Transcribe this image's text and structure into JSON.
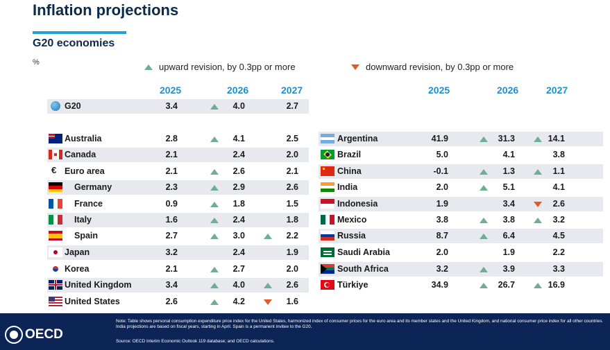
{
  "title": "Inflation projections",
  "subtitle": "G20 economies",
  "unit": "%",
  "legend": {
    "up": "upward revision, by 0.3pp or more",
    "down": "downward revision, by 0.3pp or more"
  },
  "colors": {
    "up": "#6fae94",
    "down": "#e05a2b",
    "year": "#1f8fd0",
    "footer": "#0c2456"
  },
  "years": [
    "2025",
    "2026",
    "2027"
  ],
  "left_rows": [
    {
      "name": "G20",
      "v2025": "3.4",
      "v2026": "4.0",
      "v2027": "2.7",
      "r2026": "up",
      "r2027": ""
    },
    {
      "name": "Australia",
      "v2025": "2.8",
      "v2026": "4.1",
      "v2027": "2.5",
      "r2026": "up",
      "r2027": ""
    },
    {
      "name": "Canada",
      "v2025": "2.1",
      "v2026": "2.4",
      "v2027": "2.0",
      "r2026": "",
      "r2027": ""
    },
    {
      "name": "Euro area",
      "v2025": "2.1",
      "v2026": "2.6",
      "v2027": "2.1",
      "r2026": "up",
      "r2027": ""
    },
    {
      "name": "Germany",
      "v2025": "2.3",
      "v2026": "2.9",
      "v2027": "2.6",
      "r2026": "up",
      "r2027": ""
    },
    {
      "name": "France",
      "v2025": "0.9",
      "v2026": "1.8",
      "v2027": "1.5",
      "r2026": "up",
      "r2027": ""
    },
    {
      "name": "Italy",
      "v2025": "1.6",
      "v2026": "2.4",
      "v2027": "1.8",
      "r2026": "up",
      "r2027": ""
    },
    {
      "name": "Spain",
      "v2025": "2.7",
      "v2026": "3.0",
      "v2027": "2.2",
      "r2026": "up",
      "r2027": "up"
    },
    {
      "name": "Japan",
      "v2025": "3.2",
      "v2026": "2.4",
      "v2027": "1.9",
      "r2026": "",
      "r2027": ""
    },
    {
      "name": "Korea",
      "v2025": "2.1",
      "v2026": "2.7",
      "v2027": "2.0",
      "r2026": "up",
      "r2027": ""
    },
    {
      "name": "United Kingdom",
      "v2025": "3.4",
      "v2026": "4.0",
      "v2027": "2.6",
      "r2026": "up",
      "r2027": "up"
    },
    {
      "name": "United States",
      "v2025": "2.6",
      "v2026": "4.2",
      "v2027": "1.6",
      "r2026": "up",
      "r2027": "down"
    }
  ],
  "right_rows": [
    {
      "name": "Argentina",
      "v2025": "41.9",
      "v2026": "31.3",
      "v2027": "14.1",
      "r2026": "up",
      "r2027": "up"
    },
    {
      "name": "Brazil",
      "v2025": "5.0",
      "v2026": "4.1",
      "v2027": "3.8",
      "r2026": "",
      "r2027": ""
    },
    {
      "name": "China",
      "v2025": "-0.1",
      "v2026": "1.3",
      "v2027": "1.1",
      "r2026": "up",
      "r2027": "up"
    },
    {
      "name": "India",
      "v2025": "2.0",
      "v2026": "5.1",
      "v2027": "4.1",
      "r2026": "up",
      "r2027": ""
    },
    {
      "name": "Indonesia",
      "v2025": "1.9",
      "v2026": "3.4",
      "v2027": "2.6",
      "r2026": "",
      "r2027": "down"
    },
    {
      "name": "Mexico",
      "v2025": "3.8",
      "v2026": "3.8",
      "v2027": "3.2",
      "r2026": "up",
      "r2027": "up"
    },
    {
      "name": "Russia",
      "v2025": "8.7",
      "v2026": "6.4",
      "v2027": "4.5",
      "r2026": "up",
      "r2027": ""
    },
    {
      "name": "Saudi Arabia",
      "v2025": "2.0",
      "v2026": "1.9",
      "v2027": "2.2",
      "r2026": "",
      "r2027": ""
    },
    {
      "name": "South Africa",
      "v2025": "3.2",
      "v2026": "3.9",
      "v2027": "3.3",
      "r2026": "up",
      "r2027": ""
    },
    {
      "name": "Türkiye",
      "v2025": "34.9",
      "v2026": "26.7",
      "v2027": "16.9",
      "r2026": "up",
      "r2027": "up"
    }
  ],
  "footer": {
    "logo": "OECD",
    "note": "Note: Table shows personal consumption expenditure price index for the United States, harmonized index of consumer prices for the euro area and its member states and the United Kingdom, and national consumer price index for all other countries. India projections are based on fiscal years, starting in April. Spain is a permanent invitee to the G20.",
    "source": "Source: OECD Interim Economic Outlook 119 database; and OECD calculations."
  }
}
